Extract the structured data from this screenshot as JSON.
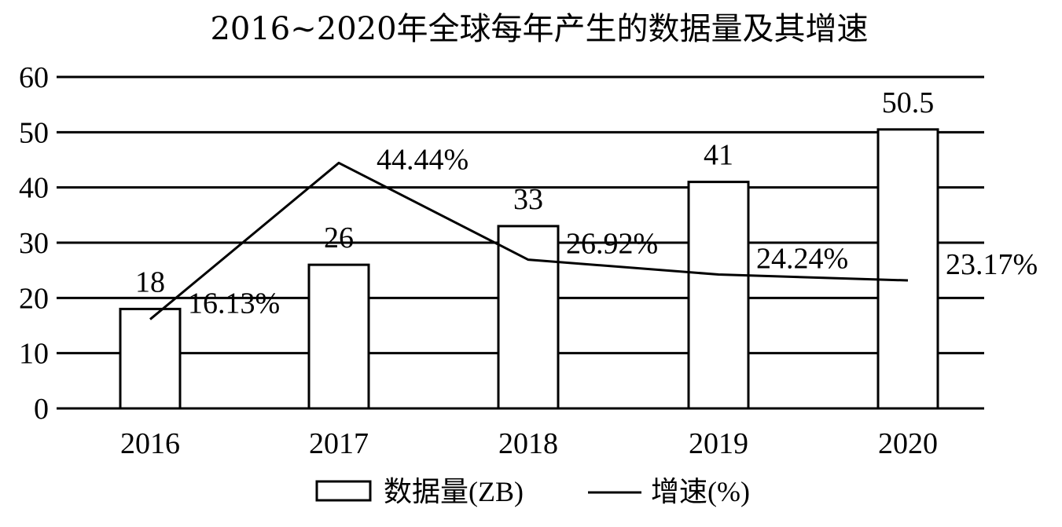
{
  "chart_data": {
    "type": "bar",
    "title": "2016~2020年全球每年产生的数据量及其增速",
    "categories": [
      "2016",
      "2017",
      "2018",
      "2019",
      "2020"
    ],
    "ylim": [
      0,
      60
    ],
    "yticks": [
      0,
      10,
      20,
      30,
      40,
      50,
      60
    ],
    "grid": true,
    "legend_position": "bottom",
    "series": [
      {
        "name": "数据量(ZB)",
        "type": "bar",
        "values": [
          18,
          26,
          33,
          41,
          50.5
        ],
        "labels": [
          "18",
          "26",
          "33",
          "41",
          "50.5"
        ]
      },
      {
        "name": "增速(%)",
        "type": "line",
        "values": [
          16.13,
          44.44,
          26.92,
          24.24,
          23.17
        ],
        "labels": [
          "16.13%",
          "44.44%",
          "26.92%",
          "24.24%",
          "23.17%"
        ]
      }
    ]
  }
}
